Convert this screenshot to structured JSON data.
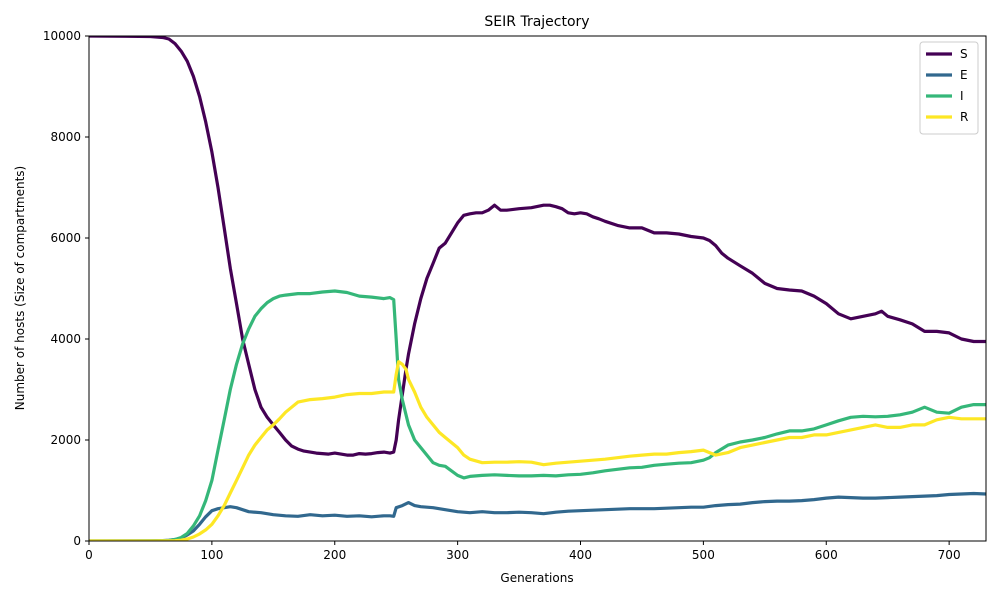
{
  "chart_data": {
    "type": "line",
    "title": "SEIR Trajectory",
    "xlabel": "Generations",
    "ylabel": "Number of hosts (Size of compartments)",
    "xlim": [
      0,
      730
    ],
    "ylim": [
      0,
      10000
    ],
    "xticks": [
      0,
      100,
      200,
      300,
      400,
      500,
      600,
      700
    ],
    "yticks": [
      0,
      2000,
      4000,
      6000,
      8000,
      10000
    ],
    "grid": false,
    "legend_position": "top-right",
    "series": [
      {
        "name": "S",
        "color": "#440154",
        "x": [
          0,
          50,
          60,
          65,
          70,
          75,
          80,
          85,
          90,
          95,
          100,
          105,
          110,
          115,
          120,
          125,
          130,
          135,
          140,
          145,
          150,
          155,
          160,
          165,
          170,
          175,
          180,
          185,
          190,
          195,
          200,
          205,
          210,
          215,
          220,
          225,
          230,
          235,
          240,
          245,
          248,
          250,
          252,
          255,
          258,
          260,
          265,
          270,
          275,
          280,
          285,
          290,
          295,
          300,
          305,
          310,
          315,
          320,
          325,
          330,
          335,
          340,
          350,
          360,
          370,
          375,
          380,
          385,
          390,
          395,
          400,
          405,
          410,
          415,
          420,
          430,
          440,
          450,
          460,
          470,
          480,
          490,
          500,
          505,
          510,
          515,
          520,
          530,
          540,
          545,
          550,
          560,
          570,
          580,
          590,
          600,
          610,
          620,
          630,
          640,
          645,
          650,
          660,
          670,
          680,
          690,
          700,
          710,
          720,
          730
        ],
        "y": [
          10000,
          9990,
          9970,
          9940,
          9850,
          9700,
          9500,
          9200,
          8800,
          8300,
          7700,
          7000,
          6200,
          5400,
          4700,
          4000,
          3500,
          3000,
          2650,
          2450,
          2300,
          2150,
          2000,
          1880,
          1820,
          1780,
          1760,
          1740,
          1730,
          1720,
          1740,
          1720,
          1700,
          1700,
          1730,
          1720,
          1730,
          1750,
          1760,
          1740,
          1760,
          2000,
          2400,
          2900,
          3400,
          3700,
          4300,
          4800,
          5200,
          5500,
          5800,
          5900,
          6100,
          6300,
          6450,
          6480,
          6500,
          6500,
          6550,
          6650,
          6550,
          6550,
          6580,
          6600,
          6650,
          6650,
          6620,
          6580,
          6500,
          6480,
          6500,
          6480,
          6420,
          6380,
          6330,
          6250,
          6200,
          6200,
          6100,
          6100,
          6080,
          6030,
          6000,
          5950,
          5850,
          5700,
          5600,
          5450,
          5300,
          5200,
          5100,
          5000,
          4970,
          4950,
          4850,
          4700,
          4500,
          4400,
          4450,
          4500,
          4550,
          4450,
          4380,
          4300,
          4150,
          4150,
          4120,
          4000,
          3950,
          3950
        ]
      },
      {
        "name": "E",
        "color": "#31688e",
        "x": [
          0,
          50,
          60,
          65,
          70,
          75,
          80,
          85,
          90,
          95,
          100,
          105,
          110,
          115,
          120,
          125,
          130,
          140,
          150,
          160,
          170,
          180,
          190,
          200,
          210,
          220,
          230,
          240,
          245,
          248,
          250,
          255,
          260,
          265,
          270,
          280,
          290,
          300,
          310,
          320,
          330,
          340,
          350,
          360,
          370,
          380,
          390,
          400,
          410,
          420,
          430,
          440,
          450,
          460,
          470,
          480,
          490,
          500,
          510,
          520,
          530,
          540,
          550,
          560,
          570,
          580,
          590,
          600,
          610,
          620,
          630,
          640,
          650,
          660,
          670,
          680,
          690,
          700,
          710,
          720,
          730
        ],
        "y": [
          0,
          3,
          8,
          15,
          30,
          60,
          120,
          200,
          330,
          480,
          600,
          640,
          660,
          680,
          660,
          620,
          580,
          560,
          520,
          500,
          490,
          520,
          500,
          510,
          490,
          500,
          480,
          500,
          500,
          490,
          660,
          700,
          760,
          700,
          680,
          660,
          620,
          580,
          560,
          580,
          560,
          560,
          570,
          560,
          540,
          570,
          590,
          600,
          610,
          620,
          630,
          640,
          640,
          640,
          650,
          660,
          670,
          670,
          700,
          720,
          730,
          760,
          780,
          790,
          790,
          800,
          820,
          850,
          870,
          860,
          850,
          850,
          860,
          870,
          880,
          890,
          900,
          920,
          930,
          940,
          930
        ]
      },
      {
        "name": "I",
        "color": "#35b779",
        "x": [
          0,
          50,
          60,
          65,
          70,
          75,
          80,
          85,
          90,
          95,
          100,
          105,
          110,
          115,
          120,
          125,
          130,
          135,
          140,
          145,
          150,
          155,
          160,
          170,
          180,
          190,
          200,
          210,
          220,
          230,
          240,
          245,
          248,
          250,
          252,
          255,
          258,
          260,
          265,
          270,
          275,
          280,
          285,
          290,
          300,
          305,
          310,
          320,
          330,
          340,
          350,
          360,
          370,
          380,
          390,
          400,
          410,
          420,
          430,
          440,
          450,
          460,
          470,
          480,
          490,
          500,
          505,
          510,
          520,
          530,
          540,
          550,
          560,
          570,
          580,
          590,
          600,
          610,
          620,
          630,
          640,
          650,
          660,
          670,
          680,
          690,
          700,
          710,
          720,
          730
        ],
        "y": [
          0,
          2,
          5,
          10,
          30,
          70,
          150,
          300,
          500,
          800,
          1200,
          1800,
          2400,
          3000,
          3500,
          3900,
          4200,
          4450,
          4600,
          4720,
          4800,
          4850,
          4870,
          4900,
          4900,
          4930,
          4950,
          4920,
          4850,
          4830,
          4800,
          4820,
          4780,
          4000,
          3200,
          2800,
          2500,
          2300,
          2000,
          1850,
          1700,
          1550,
          1500,
          1480,
          1300,
          1250,
          1280,
          1300,
          1310,
          1300,
          1290,
          1290,
          1300,
          1290,
          1310,
          1320,
          1350,
          1390,
          1420,
          1450,
          1460,
          1500,
          1520,
          1540,
          1550,
          1600,
          1650,
          1750,
          1900,
          1960,
          2000,
          2050,
          2120,
          2180,
          2180,
          2220,
          2300,
          2380,
          2450,
          2470,
          2460,
          2470,
          2500,
          2550,
          2650,
          2550,
          2530,
          2650,
          2700,
          2700
        ]
      },
      {
        "name": "R",
        "color": "#fde725",
        "x": [
          0,
          50,
          60,
          65,
          70,
          75,
          80,
          85,
          90,
          95,
          100,
          105,
          110,
          115,
          120,
          125,
          130,
          135,
          140,
          145,
          150,
          155,
          160,
          165,
          170,
          180,
          190,
          200,
          210,
          220,
          230,
          240,
          245,
          248,
          250,
          252,
          255,
          258,
          260,
          265,
          270,
          275,
          280,
          285,
          290,
          300,
          305,
          310,
          320,
          330,
          340,
          350,
          360,
          370,
          380,
          390,
          400,
          410,
          420,
          430,
          440,
          450,
          460,
          470,
          480,
          490,
          500,
          505,
          510,
          520,
          530,
          540,
          550,
          560,
          570,
          580,
          590,
          600,
          610,
          620,
          630,
          640,
          650,
          660,
          670,
          680,
          690,
          700,
          710,
          720,
          730
        ],
        "y": [
          0,
          0,
          1,
          2,
          5,
          15,
          40,
          80,
          140,
          220,
          330,
          500,
          700,
          950,
          1200,
          1450,
          1700,
          1900,
          2050,
          2200,
          2300,
          2420,
          2550,
          2650,
          2750,
          2800,
          2820,
          2850,
          2900,
          2920,
          2920,
          2950,
          2950,
          2950,
          3300,
          3550,
          3500,
          3400,
          3200,
          2950,
          2650,
          2450,
          2300,
          2150,
          2050,
          1850,
          1700,
          1620,
          1550,
          1560,
          1560,
          1570,
          1560,
          1510,
          1540,
          1560,
          1580,
          1600,
          1620,
          1650,
          1680,
          1700,
          1720,
          1720,
          1750,
          1770,
          1800,
          1750,
          1700,
          1750,
          1850,
          1900,
          1950,
          2000,
          2050,
          2050,
          2100,
          2100,
          2150,
          2200,
          2250,
          2300,
          2250,
          2250,
          2300,
          2300,
          2400,
          2450,
          2420,
          2420,
          2420
        ]
      }
    ]
  }
}
